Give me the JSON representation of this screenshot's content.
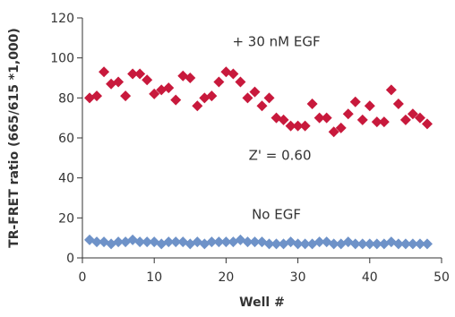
{
  "chart_data": {
    "type": "scatter",
    "title": "",
    "xlabel": "Well #",
    "ylabel": "TR-FRET ratio (665/615 *1,000)",
    "xlim": [
      0,
      50
    ],
    "ylim": [
      0,
      120
    ],
    "x_ticks": [
      0,
      10,
      20,
      30,
      40,
      50
    ],
    "y_ticks": [
      0,
      20,
      40,
      60,
      80,
      100,
      120
    ],
    "x_tick_labels": [
      "0",
      "10",
      "20",
      "30",
      "40",
      "50"
    ],
    "y_tick_labels": [
      "0",
      "20",
      "40",
      "60",
      "80",
      "100",
      "120"
    ],
    "grid": false,
    "annotations": [
      {
        "text": "+ 30 nM  EGF",
        "x": 27,
        "y": 106
      },
      {
        "text": "Z' = 0.60",
        "x": 27.5,
        "y": 49
      },
      {
        "text": "No  EGF",
        "x": 27,
        "y": 19.5
      }
    ],
    "series": [
      {
        "color": "#c8193c",
        "marker": "diamond",
        "x": [
          1,
          2,
          3,
          4,
          5,
          6,
          7,
          8,
          9,
          10,
          11,
          12,
          13,
          14,
          15,
          16,
          17,
          18,
          19,
          20,
          21,
          22,
          23,
          24,
          25,
          26,
          27,
          28,
          29,
          30,
          31,
          32,
          33,
          34,
          35,
          36,
          37,
          38,
          39,
          40,
          41,
          42,
          43,
          44,
          45,
          46,
          47,
          48
        ],
        "values": [
          80,
          81,
          93,
          87,
          88,
          81,
          92,
          92,
          89,
          82,
          84,
          85,
          79,
          91,
          90,
          76,
          80,
          81,
          88,
          93,
          92,
          88,
          80,
          83,
          76,
          80,
          70,
          69,
          66,
          66,
          66,
          77,
          70,
          70,
          63,
          65,
          72,
          78,
          69,
          76,
          68,
          68,
          84,
          77,
          69,
          72,
          70,
          67
        ]
      },
      {
        "color": "#6e92c8",
        "marker": "diamond",
        "x": [
          1,
          2,
          3,
          4,
          5,
          6,
          7,
          8,
          9,
          10,
          11,
          12,
          13,
          14,
          15,
          16,
          17,
          18,
          19,
          20,
          21,
          22,
          23,
          24,
          25,
          26,
          27,
          28,
          29,
          30,
          31,
          32,
          33,
          34,
          35,
          36,
          37,
          38,
          39,
          40,
          41,
          42,
          43,
          44,
          45,
          46,
          47,
          48
        ],
        "values": [
          9,
          8,
          8,
          7,
          8,
          8,
          9,
          8,
          8,
          8,
          7,
          8,
          8,
          8,
          7,
          8,
          7,
          8,
          8,
          8,
          8,
          9,
          8,
          8,
          8,
          7,
          7,
          7,
          8,
          7,
          7,
          7,
          8,
          8,
          7,
          7,
          8,
          7,
          7,
          7,
          7,
          7,
          8,
          7,
          7,
          7,
          7,
          7
        ]
      }
    ]
  }
}
